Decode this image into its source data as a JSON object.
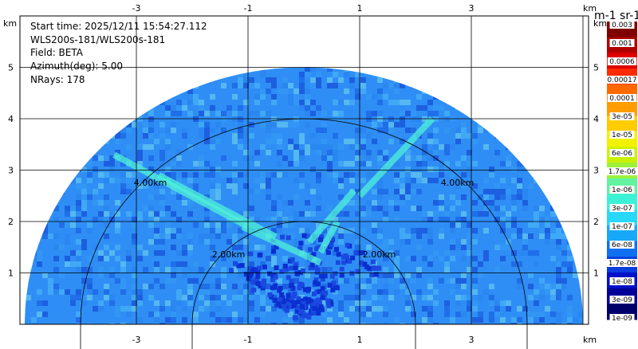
{
  "info": {
    "start_time": "Start time: 2025/12/11 15:54:27.112",
    "instrument": "WLS200s-181/WLS200s-181",
    "field": "Field: BETA",
    "azimuth": "Azimuth(deg): 5.00",
    "nrays": "NRays: 178"
  },
  "chart_data": {
    "type": "heatmap",
    "projection": "RHI polar (range-height)",
    "x_unit": "km",
    "y_unit": "km",
    "xlim": [
      -5.4,
      5.2
    ],
    "ylim": [
      0,
      5.5
    ],
    "x_ticks": [
      -3,
      -1,
      1,
      3
    ],
    "y_ticks": [
      1,
      2,
      3,
      4,
      5
    ],
    "x_tick_labels": [
      "-3",
      "-1",
      "1",
      "3"
    ],
    "y_tick_labels": [
      "1",
      "2",
      "3",
      "4",
      "5"
    ],
    "max_range_km": 5.0,
    "range_rings_km": [
      2.0,
      4.0
    ],
    "range_ring_labels": [
      "2.00km",
      "2.00km",
      "4.00km",
      "4.00km"
    ],
    "grid": true,
    "colorbar": {
      "title": "m-1 sr-1",
      "labels": [
        "0.003",
        "0.001",
        "0.0006",
        "0.00017",
        "0.0001",
        "3e-05",
        "1e-05",
        "6e-06",
        "1.7e-06",
        "1e-06",
        "3e-07",
        "1e-07",
        "6e-08",
        "1.7e-08",
        "1e-08",
        "3e-09",
        "1e-09"
      ],
      "colors": [
        "#7f0000",
        "#b20000",
        "#e00000",
        "#ff2a00",
        "#ff6a00",
        "#ff9c00",
        "#ffcc00",
        "#f2f200",
        "#c9f200",
        "#9cf23b",
        "#63f2a0",
        "#3cf2d6",
        "#28d8f8",
        "#18a8f8",
        "#1070f0",
        "#0a3ce0",
        "#0010c8",
        "#000099",
        "#00006a"
      ]
    }
  }
}
